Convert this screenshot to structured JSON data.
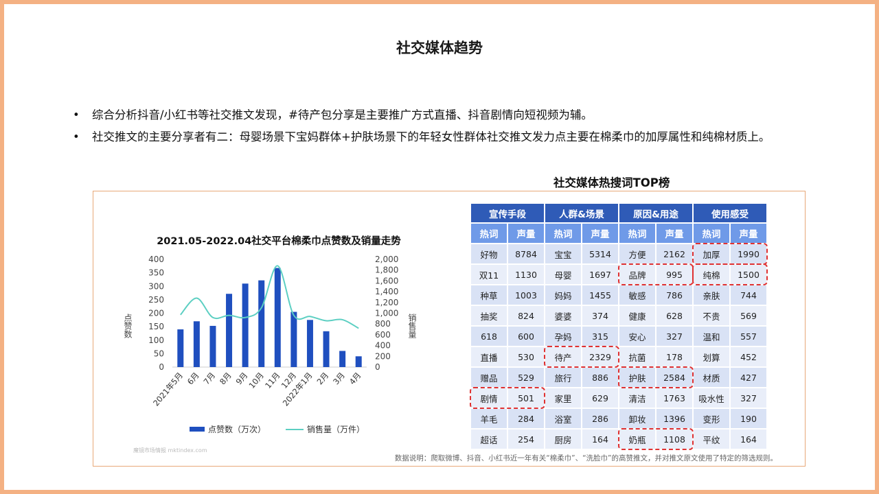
{
  "page": {
    "title": "社交媒体趋势"
  },
  "bullets": [
    "综合分析抖音/小红书等社交推文发现，#待产包分享是主要推广方式直播、抖音剧情向短视频为辅。",
    "社交推文的主要分享者有二：母婴场景下宝妈群体+护肤场景下的年轻女性群体社交推文发力点主要在棉柔巾的加厚属性和纯棉材质上。"
  ],
  "bullet_symbol": "•",
  "hot_table": {
    "title": "社交媒体热搜词TOP榜",
    "groups": [
      "宣传手段",
      "人群&场景",
      "原因&用途",
      "使用感受"
    ],
    "sub_headers": [
      "热词",
      "声量"
    ],
    "rows": [
      [
        [
          "好物",
          "8784"
        ],
        [
          "宝宝",
          "5314"
        ],
        [
          "方便",
          "2162"
        ],
        [
          "加厚",
          "1990"
        ]
      ],
      [
        [
          "双11",
          "1130"
        ],
        [
          "母婴",
          "1697"
        ],
        [
          "品牌",
          "995"
        ],
        [
          "纯棉",
          "1500"
        ]
      ],
      [
        [
          "种草",
          "1003"
        ],
        [
          "妈妈",
          "1455"
        ],
        [
          "敏感",
          "786"
        ],
        [
          "亲肤",
          "744"
        ]
      ],
      [
        [
          "抽奖",
          "824"
        ],
        [
          "婆婆",
          "374"
        ],
        [
          "健康",
          "628"
        ],
        [
          "不贵",
          "569"
        ]
      ],
      [
        [
          "618",
          "600"
        ],
        [
          "孕妈",
          "315"
        ],
        [
          "安心",
          "327"
        ],
        [
          "温和",
          "557"
        ]
      ],
      [
        [
          "直播",
          "530"
        ],
        [
          "待产",
          "2329"
        ],
        [
          "抗菌",
          "178"
        ],
        [
          "划算",
          "452"
        ]
      ],
      [
        [
          "赠品",
          "529"
        ],
        [
          "旅行",
          "886"
        ],
        [
          "护肤",
          "2584"
        ],
        [
          "材质",
          "427"
        ]
      ],
      [
        [
          "剧情",
          "501"
        ],
        [
          "家里",
          "629"
        ],
        [
          "清洁",
          "1763"
        ],
        [
          "吸水性",
          "327"
        ]
      ],
      [
        [
          "羊毛",
          "284"
        ],
        [
          "浴室",
          "286"
        ],
        [
          "卸妆",
          "1396"
        ],
        [
          "变形",
          "190"
        ]
      ],
      [
        [
          "超话",
          "254"
        ],
        [
          "厨房",
          "164"
        ],
        [
          "奶瓶",
          "1108"
        ],
        [
          "平纹",
          "164"
        ]
      ]
    ],
    "highlights": [
      [
        0,
        3
      ],
      [
        1,
        2
      ],
      [
        1,
        3
      ],
      [
        5,
        1
      ],
      [
        6,
        2
      ],
      [
        7,
        0
      ],
      [
        9,
        2
      ]
    ],
    "colors": {
      "group_header": "#2f5bb7",
      "sub_header": "#6f9ae8",
      "cell": "#d9e2f5",
      "highlight": "#e03131"
    }
  },
  "watermark": "魔镜市场情报 mktindex.com",
  "footnote": "数据说明：爬取微博、抖音、小红书近一年有关“棉柔巾”、“洗脸巾”的高赞推文，并对推文原文使用了特定的筛选规则。",
  "chart_data": {
    "type": "bar+line",
    "title": "2021.05-2022.04社交平台棉柔巾点赞数及销量走势",
    "categories": [
      "2021年5月",
      "6月",
      "7月",
      "8月",
      "9月",
      "10月",
      "11月",
      "12月",
      "2022年1月",
      "2月",
      "3月",
      "4月"
    ],
    "series": [
      {
        "name": "点赞数（万次）",
        "type": "bar",
        "axis": "left",
        "color": "#1f4fbf",
        "values": [
          140,
          170,
          153,
          272,
          310,
          322,
          368,
          205,
          175,
          133,
          60,
          40
        ]
      },
      {
        "name": "销售量（万件）",
        "type": "line",
        "axis": "right",
        "color": "#5ccfc2",
        "values": [
          970,
          1280,
          920,
          960,
          920,
          1100,
          1880,
          960,
          940,
          860,
          880,
          720
        ]
      }
    ],
    "y_left": {
      "label": "点赞数",
      "ylim": [
        0,
        400
      ],
      "ticks": [
        "0",
        "50",
        "100",
        "150",
        "200",
        "250",
        "300",
        "350",
        "400"
      ]
    },
    "y_right": {
      "label": "销售量",
      "ylim": [
        0,
        2000
      ],
      "ticks": [
        "0",
        "200",
        "400",
        "600",
        "800",
        "1,000",
        "1,200",
        "1,400",
        "1,600",
        "1,800",
        "2,000"
      ]
    },
    "grid": false,
    "legend": "bottom"
  }
}
